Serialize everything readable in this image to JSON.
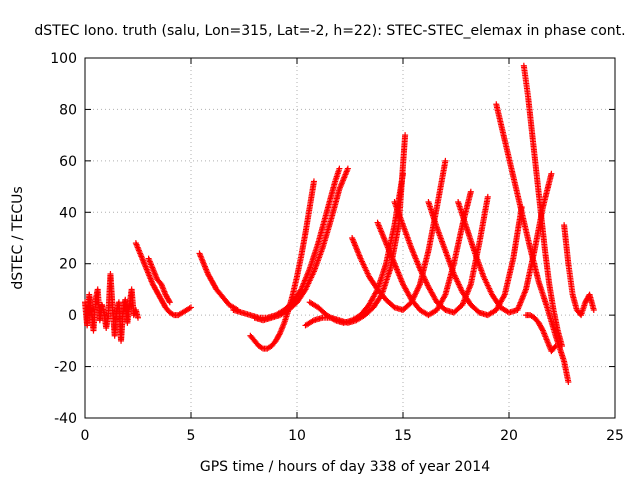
{
  "chart_data": {
    "type": "scatter",
    "title": "dSTEC Iono. truth (salu, Lon=315, Lat=-2, h=22): STEC-STEC_elemax in phase cont.",
    "xlabel": "GPS time / hours of day 338 of year 2014",
    "ylabel": "dSTEC  / TECUs",
    "xlim": [
      0,
      25
    ],
    "ylim": [
      -40,
      100
    ],
    "xticks": [
      0,
      5,
      10,
      15,
      20,
      25
    ],
    "yticks": [
      -40,
      -20,
      0,
      20,
      40,
      60,
      80,
      100
    ],
    "xtick_labels": [
      "0",
      "5",
      "10",
      "15",
      "20",
      "25"
    ],
    "ytick_labels": [
      "-40",
      "-20",
      "0",
      "20",
      "40",
      "60",
      "80",
      "100"
    ],
    "grid": true,
    "marker": "+",
    "color": "#ff0000",
    "series": [
      {
        "x": [
          0.0,
          0.1,
          0.2,
          0.3,
          0.4,
          0.5,
          0.6,
          0.7,
          0.8,
          0.9,
          1.0,
          1.1,
          1.2,
          1.3,
          1.4,
          1.5,
          1.6,
          1.7,
          1.8,
          1.9,
          2.0,
          2.1,
          2.2,
          2.3,
          2.4,
          2.5
        ],
        "y": [
          5,
          -4,
          8,
          2,
          -6,
          6,
          10,
          -2,
          4,
          1,
          -5,
          0,
          16,
          3,
          -8,
          2,
          5,
          -10,
          2,
          6,
          -3,
          4,
          10,
          0,
          2,
          -1
        ]
      },
      {
        "x": [
          2.4,
          2.6,
          2.8,
          3.0,
          3.2,
          3.4,
          3.6,
          3.8,
          4.0,
          4.2,
          4.4,
          4.6,
          4.8,
          5.0
        ],
        "y": [
          28,
          24,
          20,
          16,
          12,
          9,
          6,
          3,
          1,
          0,
          0,
          1,
          2,
          3
        ]
      },
      {
        "x": [
          3.0,
          3.2,
          3.4,
          3.6,
          3.8,
          4.0
        ],
        "y": [
          22,
          18,
          14,
          12,
          8,
          5
        ]
      },
      {
        "x": [
          5.4,
          5.6,
          5.8,
          6.0,
          6.2,
          6.4,
          6.6,
          6.8,
          7.0,
          7.2
        ],
        "y": [
          24,
          20,
          16,
          13,
          10,
          8,
          6,
          4,
          3,
          2
        ]
      },
      {
        "x": [
          7.8,
          8.0,
          8.2,
          8.4,
          8.6,
          8.8,
          9.0,
          9.2,
          9.4,
          9.6,
          9.8,
          10.0,
          10.2,
          10.4,
          10.6,
          10.8
        ],
        "y": [
          -8,
          -10,
          -12,
          -13,
          -13,
          -12,
          -10,
          -7,
          -3,
          2,
          8,
          15,
          23,
          32,
          42,
          52
        ]
      },
      {
        "x": [
          7.0,
          7.4,
          7.8,
          8.2,
          8.6,
          9.0,
          9.4,
          9.8,
          10.2,
          10.6,
          11.0,
          11.4,
          11.8,
          12.0
        ],
        "y": [
          2,
          1,
          0,
          -1,
          -1,
          0,
          2,
          5,
          10,
          18,
          28,
          40,
          52,
          57
        ]
      },
      {
        "x": [
          8.0,
          8.4,
          8.8,
          9.2,
          9.6,
          10.0,
          10.4,
          10.8,
          11.2,
          11.6,
          12.0,
          12.4
        ],
        "y": [
          -1,
          -2,
          -1,
          0,
          2,
          5,
          10,
          17,
          26,
          37,
          49,
          57
        ]
      },
      {
        "x": [
          10.6,
          11.0,
          11.4,
          11.8,
          12.2,
          12.6,
          13.0,
          13.4,
          13.8,
          14.2,
          14.6,
          15.0
        ],
        "y": [
          5,
          3,
          0,
          -2,
          -3,
          -2,
          0,
          4,
          10,
          20,
          35,
          55
        ]
      },
      {
        "x": [
          10.4,
          10.8,
          11.2,
          11.6,
          12.0,
          12.4,
          12.8,
          13.2,
          13.6,
          14.0,
          14.4,
          14.8,
          15.1
        ],
        "y": [
          -4,
          -2,
          -1,
          -1,
          -2,
          -3,
          -2,
          0,
          3,
          8,
          18,
          35,
          70
        ]
      },
      {
        "x": [
          12.6,
          13.0,
          13.4,
          13.8,
          14.2,
          14.6,
          15.0,
          15.4,
          15.8,
          16.2,
          16.6,
          17.0
        ],
        "y": [
          30,
          22,
          15,
          10,
          6,
          3,
          2,
          5,
          12,
          25,
          42,
          60
        ]
      },
      {
        "x": [
          13.8,
          14.2,
          14.6,
          15.0,
          15.4,
          15.8,
          16.2,
          16.6,
          17.0,
          17.4,
          17.8,
          18.2
        ],
        "y": [
          36,
          28,
          20,
          12,
          6,
          2,
          0,
          2,
          8,
          20,
          35,
          48
        ]
      },
      {
        "x": [
          14.6,
          15.0,
          15.4,
          15.8,
          16.2,
          16.6,
          17.0,
          17.4,
          17.8,
          18.2,
          18.6,
          19.0
        ],
        "y": [
          44,
          35,
          26,
          18,
          11,
          5,
          2,
          1,
          4,
          12,
          28,
          46
        ]
      },
      {
        "x": [
          16.2,
          16.6,
          17.0,
          17.4,
          17.8,
          18.2,
          18.6,
          19.0,
          19.4,
          19.8,
          20.2,
          20.6
        ],
        "y": [
          44,
          34,
          25,
          16,
          9,
          4,
          1,
          0,
          2,
          8,
          22,
          42
        ]
      },
      {
        "x": [
          17.6,
          18.0,
          18.4,
          18.8,
          19.2,
          19.6,
          20.0,
          20.4,
          20.8,
          21.2,
          21.6,
          22.0
        ],
        "y": [
          44,
          34,
          24,
          15,
          8,
          3,
          1,
          2,
          10,
          25,
          42,
          55
        ]
      },
      {
        "x": [
          19.4,
          19.8,
          20.2,
          20.6,
          21.0,
          21.4,
          21.8,
          22.2,
          22.6,
          22.8
        ],
        "y": [
          82,
          68,
          54,
          40,
          26,
          13,
          3,
          -8,
          -18,
          -26
        ]
      },
      {
        "x": [
          20.7,
          20.9,
          21.1,
          21.3,
          21.5,
          21.7,
          21.9,
          22.1,
          22.3,
          22.5
        ],
        "y": [
          97,
          85,
          70,
          55,
          40,
          25,
          12,
          2,
          -6,
          -12
        ]
      },
      {
        "x": [
          20.8,
          21.0,
          21.2,
          21.4,
          21.6,
          21.8,
          22.0,
          22.2
        ],
        "y": [
          0,
          0,
          -1,
          -3,
          -6,
          -10,
          -14,
          -12
        ]
      },
      {
        "x": [
          22.6,
          22.8,
          23.0,
          23.2,
          23.4,
          23.6,
          23.8,
          24.0
        ],
        "y": [
          35,
          20,
          8,
          2,
          0,
          5,
          8,
          2
        ]
      }
    ]
  }
}
